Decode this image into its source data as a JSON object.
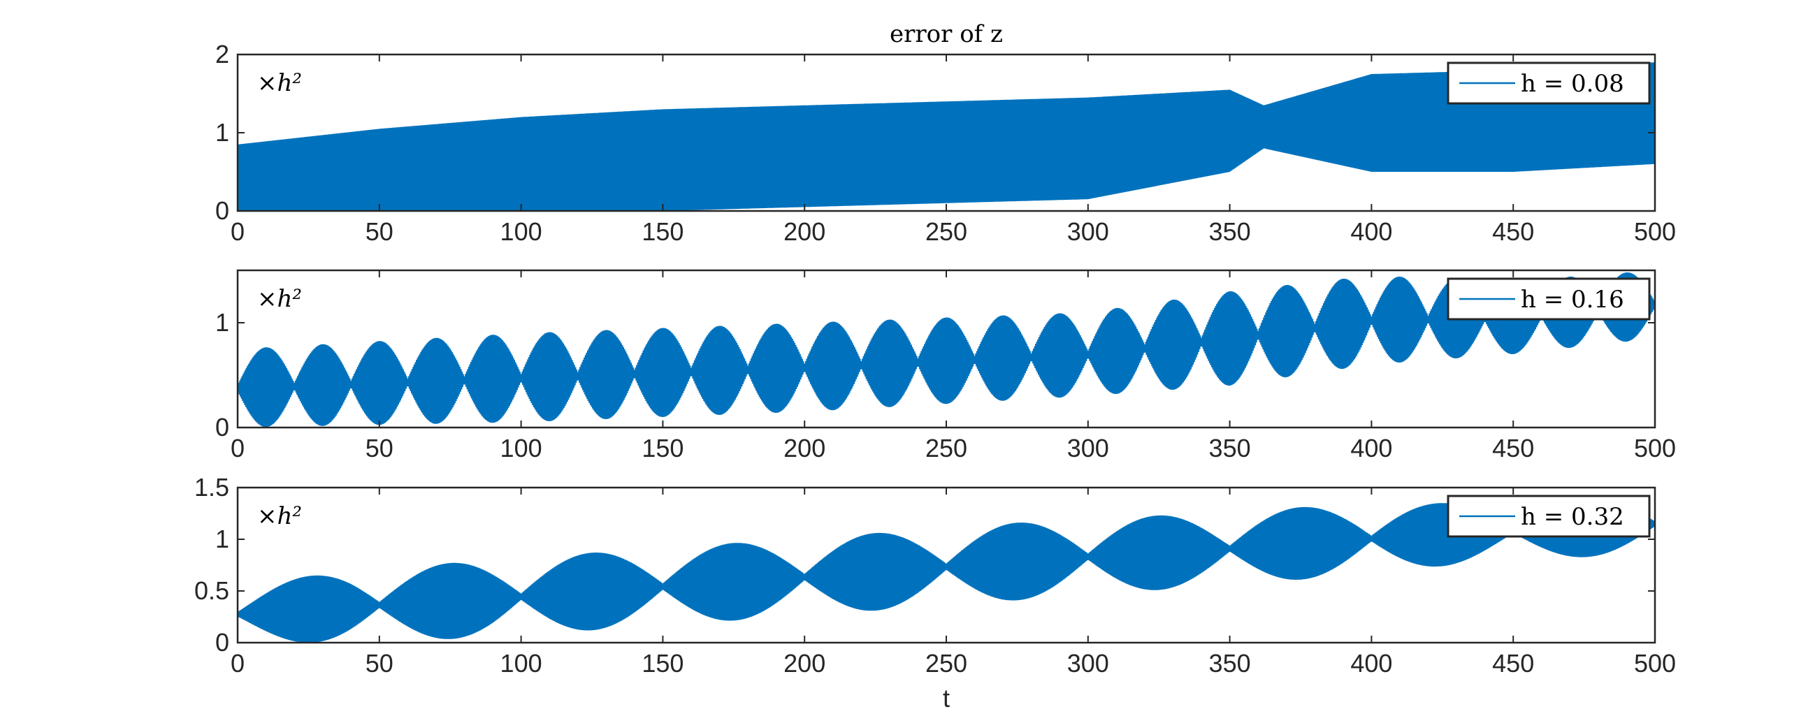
{
  "chart_data": [
    {
      "type": "line",
      "title": "error of z",
      "xlabel": "",
      "ylabel": "",
      "xlim": [
        0,
        500
      ],
      "ylim": [
        0,
        2
      ],
      "xticks": [
        "0",
        "50",
        "100",
        "150",
        "200",
        "250",
        "300",
        "350",
        "400",
        "450",
        "500"
      ],
      "yticks": [
        "0",
        "1",
        "2"
      ],
      "annotation": "×h²",
      "legend_position": "top-right",
      "series": [
        {
          "name": "h = 0.08",
          "color": "#0072BD",
          "envelope": {
            "t": [
              0,
              50,
              100,
              150,
              200,
              250,
              300,
              350,
              362,
              400,
              450,
              500
            ],
            "lower": [
              0.0,
              0.0,
              0.0,
              0.0,
              0.05,
              0.1,
              0.15,
              0.5,
              0.8,
              0.5,
              0.5,
              0.6
            ],
            "upper": [
              0.85,
              1.05,
              1.2,
              1.3,
              1.35,
              1.4,
              1.45,
              1.55,
              1.35,
              1.75,
              1.8,
              1.9
            ]
          }
        }
      ]
    },
    {
      "type": "line",
      "title": "",
      "xlabel": "",
      "ylabel": "",
      "xlim": [
        0,
        500
      ],
      "ylim": [
        0,
        1.5
      ],
      "xticks": [
        "0",
        "50",
        "100",
        "150",
        "200",
        "250",
        "300",
        "350",
        "400",
        "450",
        "500"
      ],
      "yticks": [
        "0",
        "1"
      ],
      "annotation": "×h²",
      "legend_position": "top-right",
      "series": [
        {
          "name": "h = 0.16",
          "color": "#0072BD",
          "envelope": {
            "t": [
              0,
              100,
              200,
              300,
              350,
              400,
              450,
              500
            ],
            "lower": [
              0.0,
              0.05,
              0.15,
              0.3,
              0.4,
              0.6,
              0.7,
              0.85
            ],
            "upper": [
              0.75,
              0.9,
              1.0,
              1.1,
              1.3,
              1.45,
              1.4,
              1.5
            ]
          },
          "beat_period": 20
        }
      ]
    },
    {
      "type": "line",
      "title": "",
      "xlabel": "t",
      "ylabel": "",
      "xlim": [
        0,
        500
      ],
      "ylim": [
        0,
        1.5
      ],
      "xticks": [
        "0",
        "50",
        "100",
        "150",
        "200",
        "250",
        "300",
        "350",
        "400",
        "450",
        "500"
      ],
      "yticks": [
        "0",
        "0.5",
        "1",
        "1.5"
      ],
      "annotation": "×h²",
      "legend_position": "top-right",
      "series": [
        {
          "name": "h = 0.32",
          "color": "#0072BD",
          "envelope": {
            "t": [
              0,
              40,
              90,
              140,
              195,
              245,
              295,
              345,
              395,
              445,
              500
            ],
            "lower": [
              0.0,
              0.0,
              0.05,
              0.15,
              0.25,
              0.35,
              0.45,
              0.55,
              0.65,
              0.8,
              0.85
            ],
            "upper": [
              0.55,
              0.7,
              0.8,
              0.9,
              1.0,
              1.1,
              1.2,
              1.25,
              1.35,
              1.35,
              1.45
            ]
          },
          "beat_period": 50
        }
      ]
    }
  ]
}
